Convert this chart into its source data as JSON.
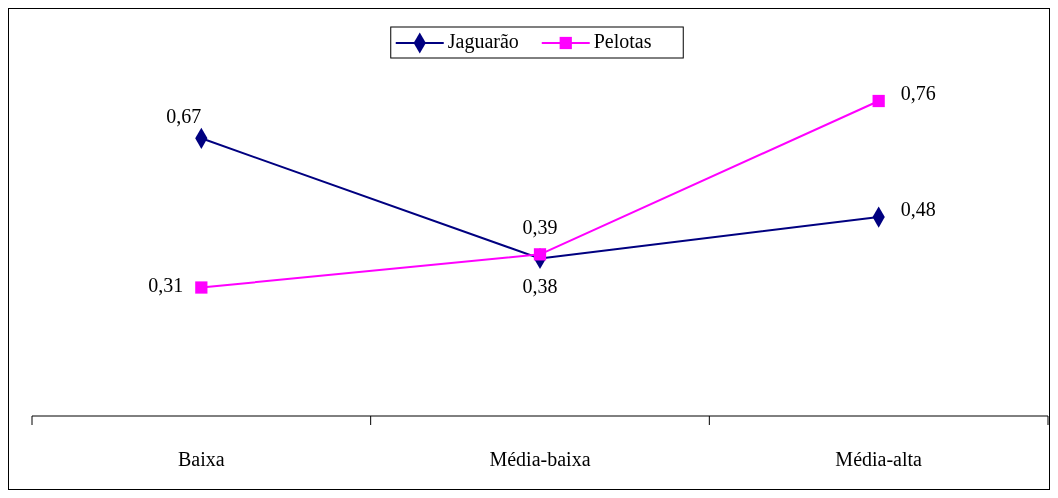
{
  "chart_data": {
    "type": "line",
    "categories": [
      "Baixa",
      "Média-baixa",
      "Média-alta"
    ],
    "series": [
      {
        "name": "Jaguarão",
        "color": "#000080",
        "values": [
          0.67,
          0.38,
          0.48
        ],
        "value_labels": [
          "0,67",
          "0,38",
          "0,48"
        ],
        "marker": "diamond"
      },
      {
        "name": "Pelotas",
        "color": "#ff00ff",
        "values": [
          0.31,
          0.39,
          0.76
        ],
        "value_labels": [
          "0,31",
          "0,39",
          "0,76"
        ],
        "marker": "square"
      }
    ],
    "legend": "top",
    "grid": false
  }
}
